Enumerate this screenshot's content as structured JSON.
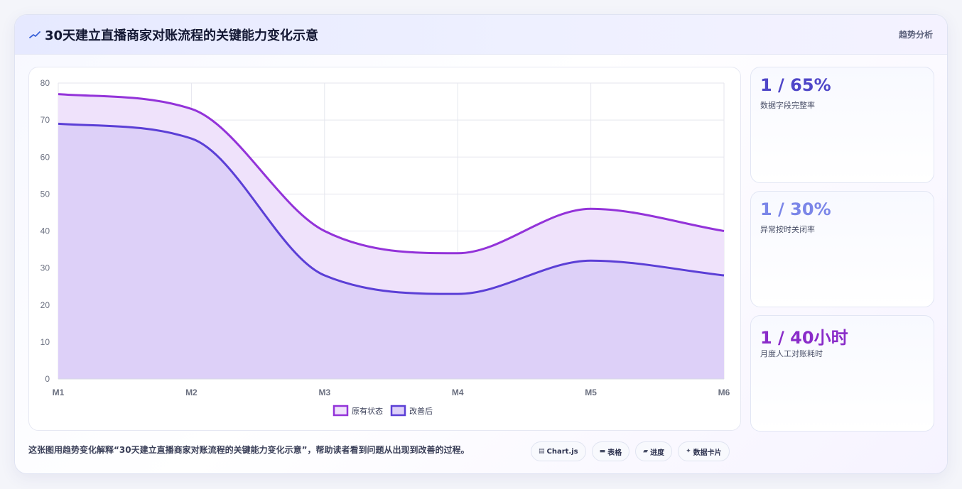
{
  "header": {
    "icon": "trend-line-icon",
    "title": "30天建立直播商家对账流程的关键能力变化示意",
    "tag": "趋势分析"
  },
  "chart_data": {
    "type": "area",
    "categories": [
      "M1",
      "M2",
      "M3",
      "M4",
      "M5",
      "M6"
    ],
    "series": [
      {
        "name": "原有状态",
        "values": [
          77,
          73,
          40,
          34,
          46,
          40
        ],
        "color": "#9333d9",
        "fill": "#efe2fb"
      },
      {
        "name": "改善后",
        "values": [
          69,
          65,
          28,
          23,
          32,
          28
        ],
        "color": "#5b3fd6",
        "fill": "#ddd0f8"
      }
    ],
    "ylim": [
      0,
      80
    ],
    "yticks": [
      0,
      10,
      20,
      30,
      40,
      50,
      60,
      70,
      80
    ],
    "grid": true,
    "legend": "bottom",
    "xlabel": "",
    "ylabel": ""
  },
  "stats": [
    {
      "value": "1 / 65%",
      "label": "数据字段完整率",
      "color": "#4f46c8"
    },
    {
      "value": "1 / 30%",
      "label": "异常按时关闭率",
      "color": "#7b86e8"
    },
    {
      "value": "1 / 40小时",
      "label": "月度人工对账耗时",
      "color": "#8a2cc9"
    }
  ],
  "footer": {
    "text": "这张图用趋势变化解释“30天建立直播商家对账流程的关键能力变化示意”，帮助读者看到问题从出现到改善的过程。",
    "tags": [
      {
        "icon": "chart-icon",
        "glyph": "▤",
        "label": "Chart.js"
      },
      {
        "icon": "table-icon",
        "glyph": "▬",
        "label": "表格"
      },
      {
        "icon": "progress-icon",
        "glyph": "▰",
        "label": "进度"
      },
      {
        "icon": "sparkle-icon",
        "glyph": "✦",
        "label": "数据卡片"
      }
    ]
  }
}
